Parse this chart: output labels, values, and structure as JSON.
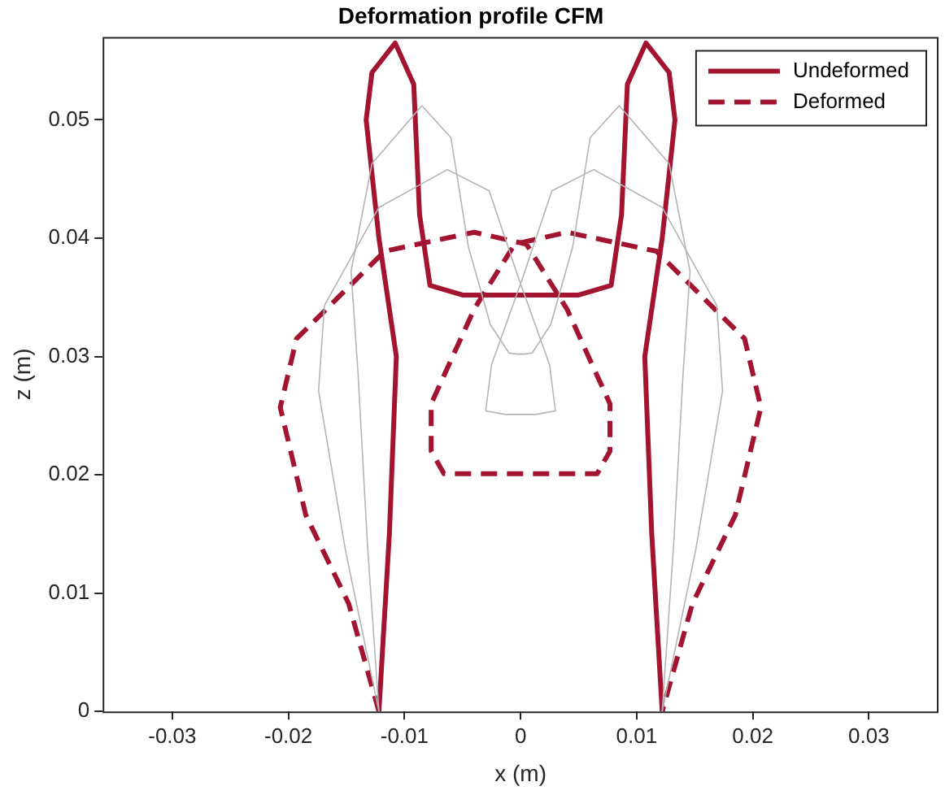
{
  "chart_data": {
    "type": "line",
    "title": "Deformation profile CFM",
    "xlabel": "x (m)",
    "ylabel": "z (m)",
    "xlim": [
      -0.036,
      0.036
    ],
    "xticks": [
      -0.03,
      -0.02,
      -0.01,
      0,
      0.01,
      0.02,
      0.03
    ],
    "ylim": [
      0,
      0.057
    ],
    "yticks": [
      0,
      0.01,
      0.02,
      0.03,
      0.04,
      0.05
    ],
    "marker": "none",
    "legend": "top right",
    "series": [
      {
        "color": "#b4b4b4",
        "x": [
          -0.0122,
          -0.0132,
          -0.014,
          -0.0146,
          -0.0128,
          -0.0085,
          -0.006,
          -0.0045,
          -0.0026,
          -0.001,
          -0.0003,
          0,
          0.0003,
          0.001,
          0.0026,
          0.0045,
          0.006,
          0.0085,
          0.0128,
          0.0146,
          0.014,
          0.0132,
          0.0122
        ],
        "values": [
          0,
          0.0143,
          0.0286,
          0.0372,
          0.0463,
          0.0512,
          0.0485,
          0.0393,
          0.0327,
          0.0303,
          0.0302,
          0.0302,
          0.0302,
          0.0303,
          0.0327,
          0.0393,
          0.0485,
          0.0512,
          0.0463,
          0.0372,
          0.0286,
          0.0143,
          0
        ]
      },
      {
        "color": "#b4b4b4",
        "x": [
          -0.0122,
          -0.0151,
          -0.0174,
          -0.0169,
          -0.0122,
          -0.0063,
          -0.0027,
          -0.0002,
          0.0025,
          0.003,
          0.0013,
          0,
          -0.0013,
          -0.003,
          -0.0025,
          0.0002,
          0.0027,
          0.0063,
          0.0122,
          0.0169,
          0.0174,
          0.0151,
          0.0122
        ],
        "values": [
          0,
          0.0137,
          0.0271,
          0.0343,
          0.0426,
          0.0458,
          0.044,
          0.0367,
          0.0293,
          0.0254,
          0.0251,
          0.0251,
          0.0251,
          0.0254,
          0.0293,
          0.0367,
          0.044,
          0.0458,
          0.0426,
          0.0343,
          0.0271,
          0.0137,
          0
        ]
      },
      {
        "name": "Undeformed",
        "color": "#a2142f",
        "line_style": "solid",
        "x": [
          -0.0122,
          -0.0113,
          -0.0107,
          -0.0122,
          -0.0133,
          -0.0128,
          -0.0108,
          -0.0092,
          -0.0087,
          -0.0078,
          -0.005,
          0,
          0.005,
          0.0078,
          0.0087,
          0.0092,
          0.0108,
          0.0128,
          0.0133,
          0.0122,
          0.0107,
          0.0113,
          0.0122
        ],
        "values": [
          0,
          0.015,
          0.03,
          0.04,
          0.05,
          0.054,
          0.0565,
          0.053,
          0.042,
          0.036,
          0.0352,
          0.0352,
          0.0352,
          0.036,
          0.042,
          0.053,
          0.0565,
          0.054,
          0.05,
          0.04,
          0.03,
          0.015,
          0
        ]
      },
      {
        "name": "Deformed",
        "color": "#a2142f",
        "line_style": "dashed",
        "x": [
          -0.0122,
          -0.0148,
          -0.0185,
          -0.0207,
          -0.0193,
          -0.0117,
          -0.004,
          0.0005,
          0.004,
          0.0077,
          0.0077,
          0.0066,
          0,
          -0.0066,
          -0.0077,
          -0.0077,
          -0.004,
          -0.0005,
          0.004,
          0.0117,
          0.0193,
          0.0207,
          0.0185,
          0.0148,
          0.0122
        ],
        "values": [
          0,
          0.0091,
          0.0166,
          0.0257,
          0.0315,
          0.0389,
          0.0405,
          0.0395,
          0.034,
          0.026,
          0.022,
          0.0201,
          0.0201,
          0.0201,
          0.022,
          0.026,
          0.034,
          0.0395,
          0.0405,
          0.0389,
          0.0315,
          0.0257,
          0.0166,
          0.0091,
          0
        ]
      }
    ]
  }
}
